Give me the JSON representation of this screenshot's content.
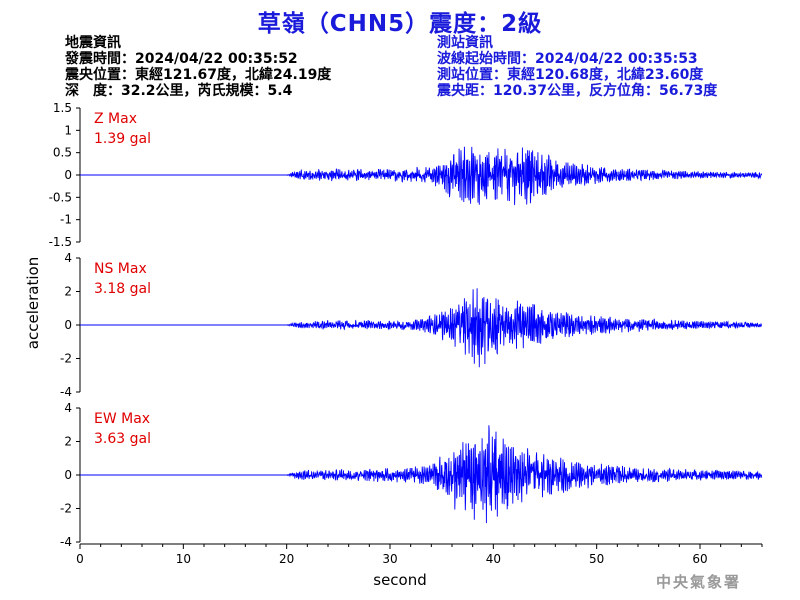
{
  "header": {
    "title": "草嶺（CHN5）震度：2級",
    "quake_info": [
      "地震資訊",
      "發震時間：2024/04/22 00:35:52",
      "震央位置：東經121.67度，北緯24.19度",
      "深　度：32.2公里，芮氏規模：5.4"
    ],
    "station_info": [
      "測站資訊",
      "波線起始時間：2024/04/22 00:35:53",
      "測站位置：東經120.68度，北緯23.60度",
      "震央距：120.37公里，反方位角：56.73度"
    ]
  },
  "credit": "中央氣象署",
  "colors": {
    "trace": "#0000ff",
    "max_label": "#e00000",
    "title": "#1a1adb"
  },
  "chart_data": {
    "type": "line",
    "xlabel": "second",
    "ylabel": "acceleration",
    "xlim": [
      0,
      66
    ],
    "x_ticks": [
      0,
      10,
      20,
      30,
      40,
      50,
      60
    ],
    "grid": false,
    "panels": [
      {
        "name": "Z",
        "max_label": "Z Max",
        "max_value": "1.39 gal",
        "ylim": [
          -1.5,
          1.5
        ],
        "y_ticks": [
          1.5,
          1,
          0.5,
          0,
          -0.5,
          -1,
          -1.5
        ],
        "y_tick_labels": [
          "1.5",
          "1",
          "0.5",
          "0",
          "-0.5",
          "-1",
          "-1.5"
        ],
        "envelope": [
          [
            0,
            0
          ],
          [
            20,
            0
          ],
          [
            21,
            0.12
          ],
          [
            24,
            0.15
          ],
          [
            30,
            0.14
          ],
          [
            34,
            0.2
          ],
          [
            36,
            0.55
          ],
          [
            38,
            0.75
          ],
          [
            40,
            0.6
          ],
          [
            42,
            0.7
          ],
          [
            43.5,
            0.8
          ],
          [
            46,
            0.35
          ],
          [
            50,
            0.2
          ],
          [
            55,
            0.12
          ],
          [
            60,
            0.08
          ],
          [
            66,
            0.07
          ]
        ]
      },
      {
        "name": "NS",
        "max_label": "NS Max",
        "max_value": "3.18 gal",
        "ylim": [
          -4,
          4
        ],
        "y_ticks": [
          4,
          2,
          0,
          -2,
          -4
        ],
        "y_tick_labels": [
          "4",
          "2",
          "0",
          "-2",
          "-4"
        ],
        "envelope": [
          [
            0,
            0
          ],
          [
            20,
            0
          ],
          [
            21,
            0.2
          ],
          [
            24,
            0.3
          ],
          [
            30,
            0.28
          ],
          [
            33,
            0.35
          ],
          [
            35,
            0.9
          ],
          [
            37,
            1.6
          ],
          [
            38.5,
            2.8
          ],
          [
            40,
            2.0
          ],
          [
            42,
            1.6
          ],
          [
            44,
            1.3
          ],
          [
            47,
            0.8
          ],
          [
            52,
            0.5
          ],
          [
            58,
            0.3
          ],
          [
            66,
            0.15
          ]
        ]
      },
      {
        "name": "EW",
        "max_label": "EW Max",
        "max_value": "3.63 gal",
        "ylim": [
          -4,
          4
        ],
        "y_ticks": [
          4,
          2,
          0,
          -2,
          -4
        ],
        "y_tick_labels": [
          "4",
          "2",
          "0",
          "-2",
          "-4"
        ],
        "envelope": [
          [
            0,
            0
          ],
          [
            20,
            0
          ],
          [
            21,
            0.3
          ],
          [
            25,
            0.35
          ],
          [
            30,
            0.45
          ],
          [
            34,
            0.6
          ],
          [
            36,
            2.0
          ],
          [
            38,
            2.8
          ],
          [
            39,
            3.2
          ],
          [
            41,
            2.4
          ],
          [
            43,
            1.8
          ],
          [
            46,
            1.2
          ],
          [
            50,
            0.7
          ],
          [
            55,
            0.45
          ],
          [
            60,
            0.35
          ],
          [
            66,
            0.25
          ]
        ]
      }
    ]
  }
}
